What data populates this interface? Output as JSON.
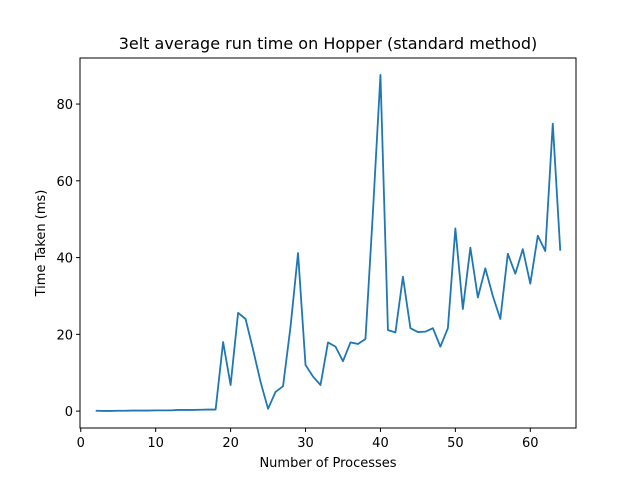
{
  "chart_data": {
    "type": "line",
    "title": "3elt average run time on Hopper (standard method)",
    "xlabel": "Number of Processes",
    "ylabel": "Time Taken (ms)",
    "xlim": [
      -0.1,
      66.1
    ],
    "ylim": [
      -4.4,
      92.0
    ],
    "xticks": [
      0,
      10,
      20,
      30,
      40,
      50,
      60
    ],
    "yticks": [
      0,
      20,
      40,
      60,
      80
    ],
    "grid": false,
    "series": [
      {
        "color": "#1f77b4",
        "x": [
          2,
          3,
          4,
          5,
          6,
          7,
          8,
          9,
          10,
          11,
          12,
          13,
          14,
          15,
          16,
          17,
          18,
          19,
          20,
          21,
          22,
          23,
          24,
          25,
          26,
          27,
          28,
          29,
          30,
          31,
          32,
          33,
          34,
          35,
          36,
          37,
          38,
          39,
          40,
          41,
          42,
          43,
          44,
          45,
          46,
          47,
          48,
          49,
          50,
          51,
          52,
          53,
          54,
          55,
          56,
          57,
          58,
          59,
          60,
          61,
          62,
          63,
          64
        ],
        "y": [
          0.1,
          0.05,
          0.05,
          0.1,
          0.1,
          0.15,
          0.15,
          0.15,
          0.2,
          0.2,
          0.2,
          0.3,
          0.3,
          0.3,
          0.35,
          0.4,
          0.4,
          18.0,
          6.8,
          25.6,
          24.0,
          16.0,
          7.6,
          0.6,
          5.0,
          6.5,
          22.0,
          41.2,
          12.0,
          9.0,
          6.8,
          17.9,
          16.8,
          13.0,
          17.9,
          17.5,
          18.8,
          52.0,
          87.6,
          21.1,
          20.5,
          35.0,
          21.6,
          20.6,
          20.7,
          21.6,
          16.8,
          21.6,
          47.6,
          26.6,
          42.6,
          29.6,
          37.2,
          30.0,
          24.0,
          41.0,
          35.8,
          42.2,
          33.2,
          45.7,
          41.7,
          74.9,
          41.8
        ]
      }
    ]
  }
}
